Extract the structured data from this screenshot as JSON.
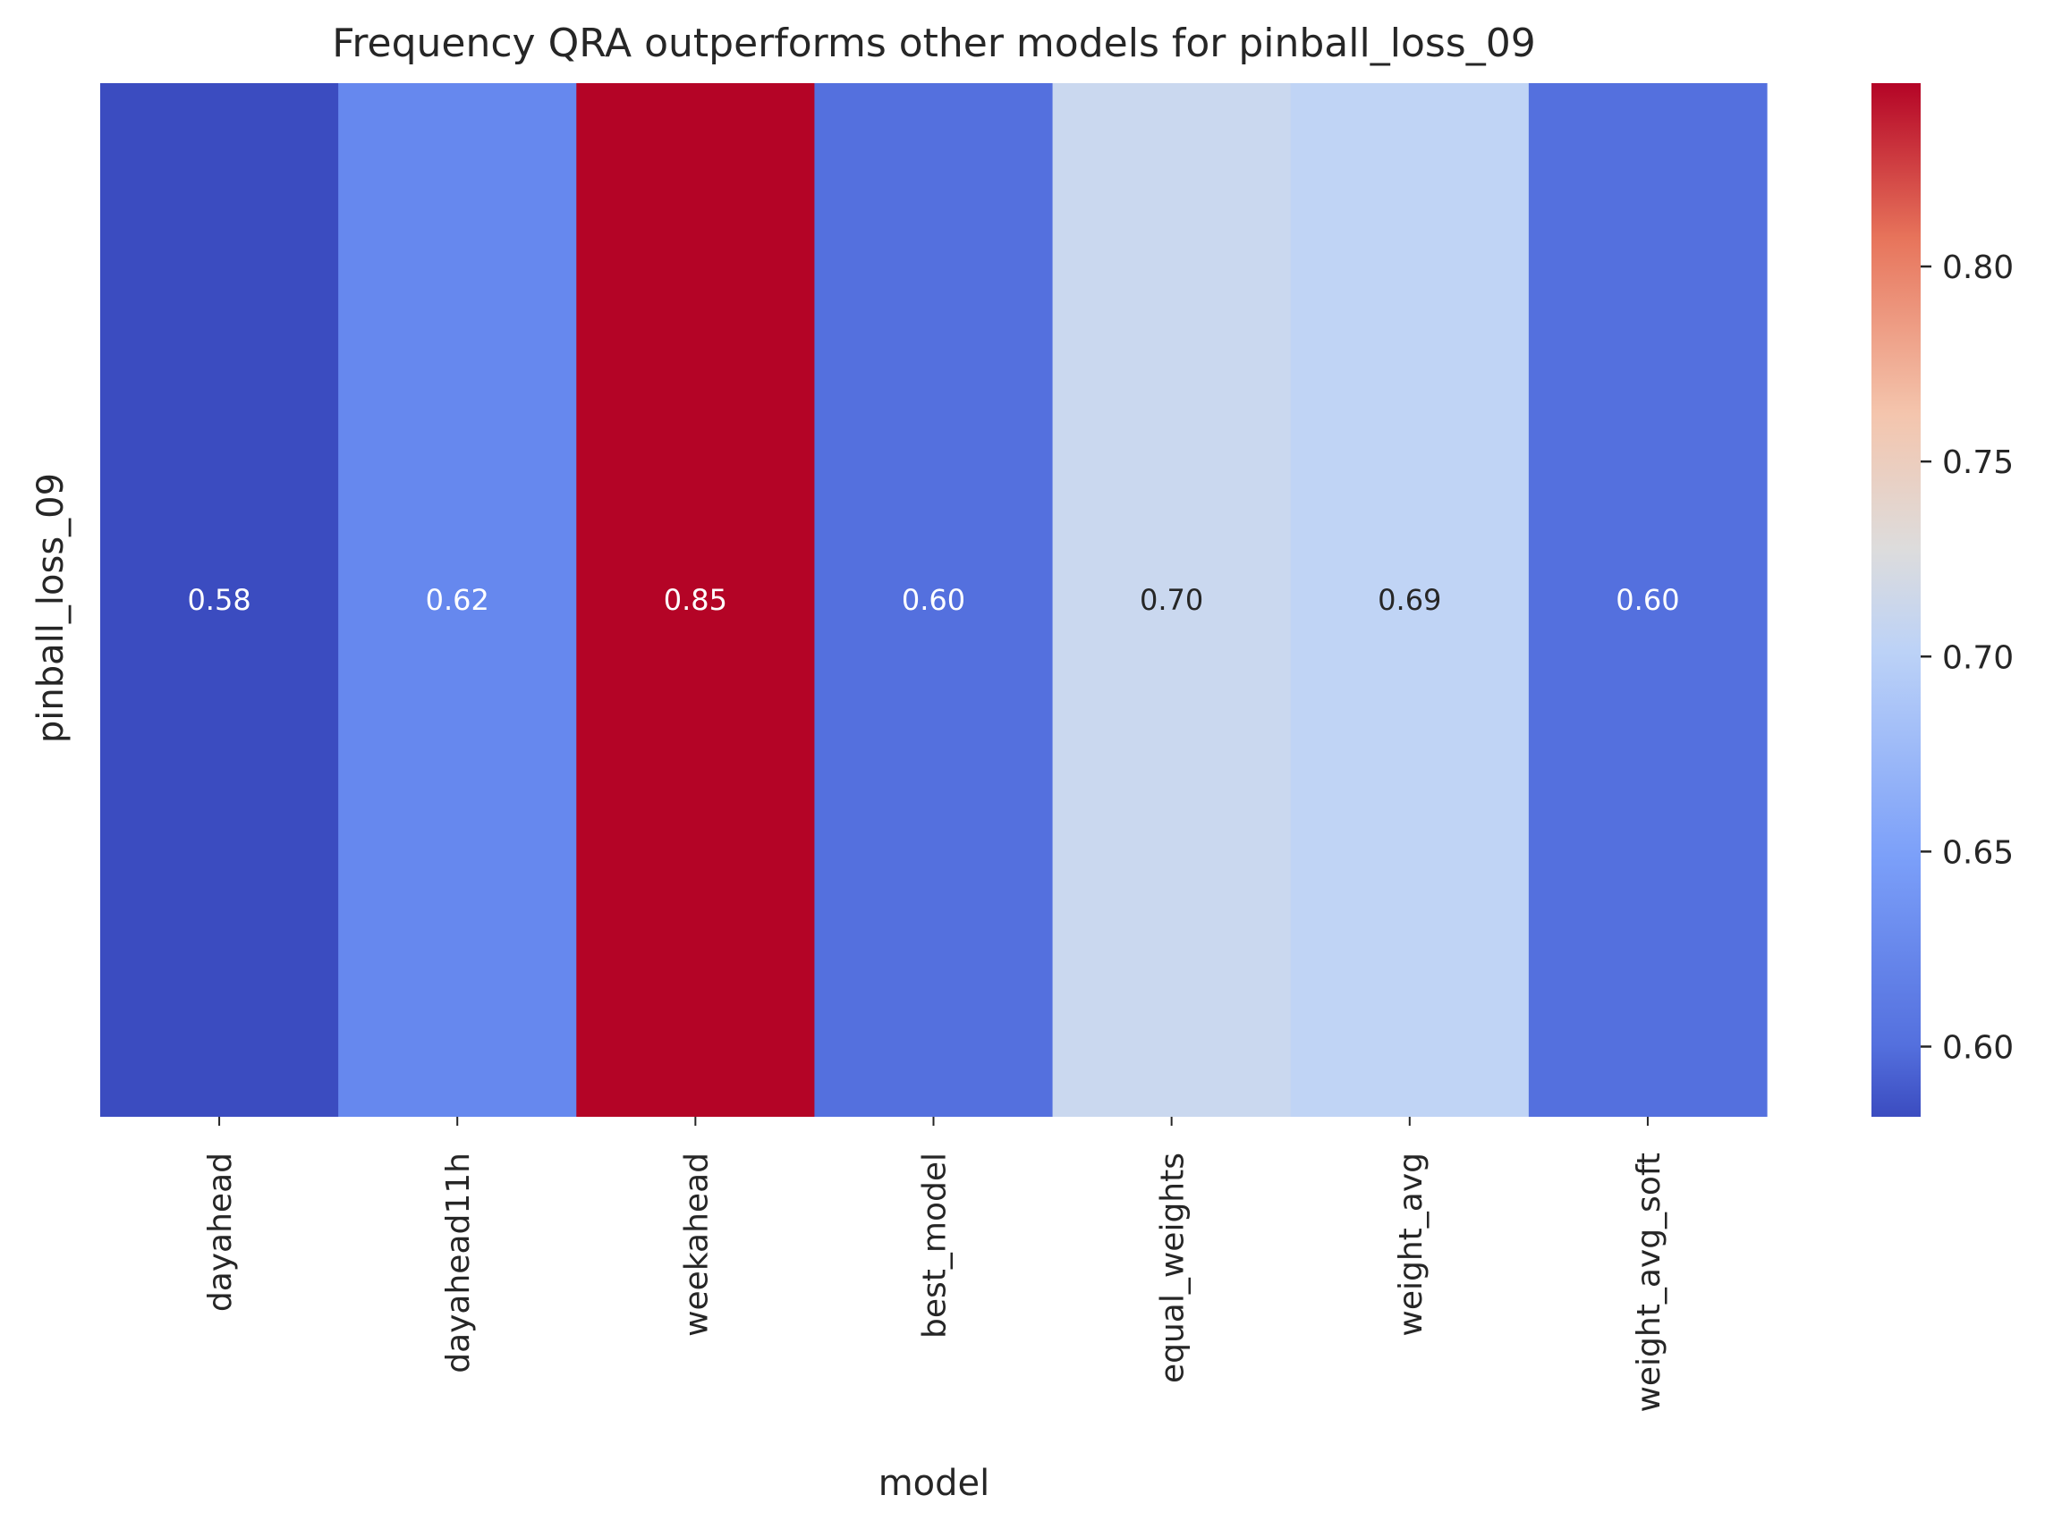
{
  "chart_data": {
    "type": "heatmap",
    "title": "Frequency QRA outperforms other models for pinball_loss_09",
    "xlabel": "model",
    "ylabel": "pinball_loss_09",
    "categories": [
      "dayahead",
      "dayahead11h",
      "weekahead",
      "best_model",
      "equal_weights",
      "weight_avg",
      "weight_avg_soft"
    ],
    "values": [
      0.582,
      0.621,
      0.847,
      0.601,
      0.703,
      0.688,
      0.601
    ],
    "value_labels": [
      "0.58",
      "0.62",
      "0.85",
      "0.60",
      "0.70",
      "0.69",
      "0.60"
    ],
    "colormap": "coolwarm",
    "colorbar": {
      "range": [
        0.582,
        0.847
      ],
      "ticks": [
        0.6,
        0.65,
        0.7,
        0.75,
        0.8
      ],
      "tick_labels": [
        "0.60",
        "0.65",
        "0.70",
        "0.75",
        "0.80"
      ]
    },
    "cell_colors": [
      "#3b4cc0",
      "#6688ee",
      "#b40426",
      "#5470de",
      "#cad8ef",
      "#c0d4f5",
      "#5470de"
    ],
    "annotation_colors": [
      "#ffffff",
      "#ffffff",
      "#ffffff",
      "#ffffff",
      "#262626",
      "#262626",
      "#ffffff"
    ],
    "grid": false
  }
}
